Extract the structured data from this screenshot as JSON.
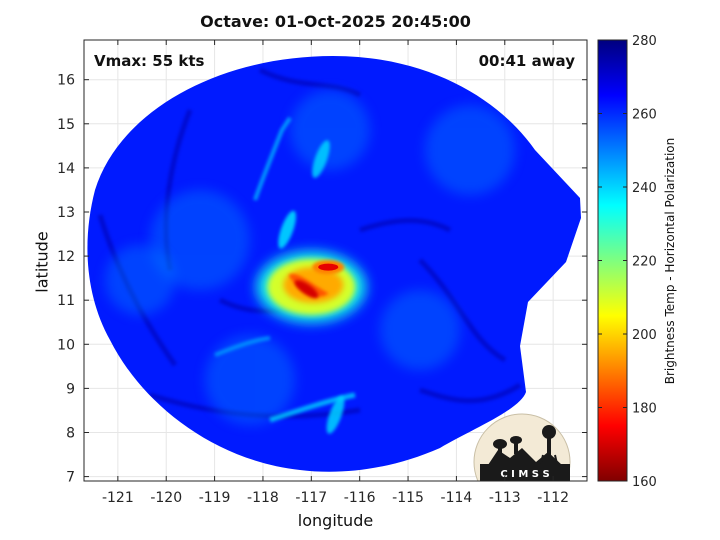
{
  "chart_data": {
    "type": "heatmap",
    "title": "Octave: 01-Oct-2025 20:45:00",
    "xlabel": "longitude",
    "ylabel": "latitude",
    "xlim": [
      -121.7,
      -111.3
    ],
    "ylim": [
      6.9,
      16.9
    ],
    "xticks": [
      -121,
      -120,
      -119,
      -118,
      -117,
      -116,
      -115,
      -114,
      -113,
      -112
    ],
    "yticks": [
      7,
      8,
      9,
      10,
      11,
      12,
      13,
      14,
      15,
      16
    ],
    "grid": true,
    "annotations": {
      "vmax": "Vmax: 55 kts",
      "time_away": "00:41 away"
    },
    "colorbar": {
      "label": "Brightness Temp - Horizontal Polarization",
      "range": [
        160,
        280
      ],
      "ticks": [
        160,
        180,
        200,
        220,
        240,
        260,
        280
      ],
      "colormap": "jet"
    },
    "storm_center": {
      "lon": -116.9,
      "lat": 11.3
    },
    "background_tb": 262,
    "features": [
      {
        "kind": "cold core (eyewall convection)",
        "lon": -117.1,
        "lat": 11.25,
        "min_tb": 170
      },
      {
        "kind": "cold spot",
        "lon": -116.65,
        "lat": 11.75,
        "min_tb": 172
      },
      {
        "kind": "inner core envelope",
        "lon": -117.0,
        "lat": 11.3,
        "min_tb": 210
      },
      {
        "kind": "rainband",
        "lon": -116.8,
        "lat": 14.2,
        "min_tb": 240
      },
      {
        "kind": "rainband",
        "lon": -117.5,
        "lat": 12.6,
        "min_tb": 238
      },
      {
        "kind": "rainband",
        "lon": -116.5,
        "lat": 8.4,
        "min_tb": 240
      }
    ],
    "logo_text": "C I M S S"
  }
}
